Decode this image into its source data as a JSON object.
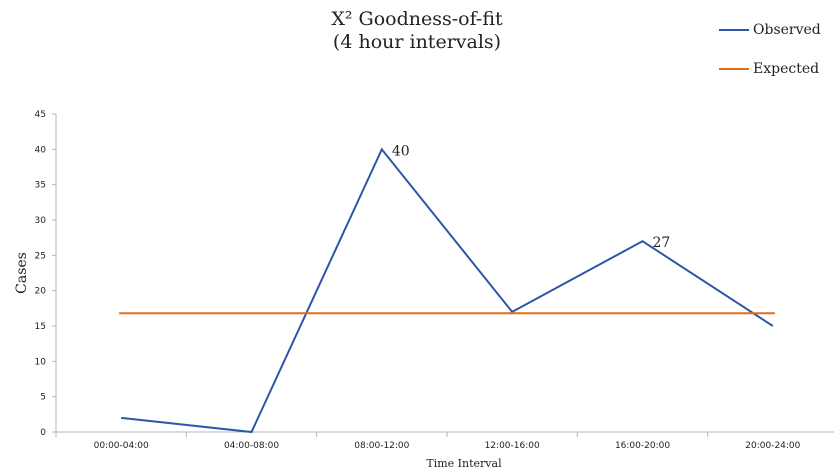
{
  "chart_data": {
    "type": "line",
    "title_line1": "X² Goodness-of-fit",
    "title_line2": "(4 hour intervals)",
    "xlabel": "Time Interval",
    "ylabel": "Cases",
    "categories": [
      "00:00-04:00",
      "04:00-08:00",
      "08:00-12:00",
      "12:00-16:00",
      "16:00-20:00",
      "20:00-24:00"
    ],
    "ylim": [
      0,
      45
    ],
    "yticks": [
      0,
      5,
      10,
      15,
      20,
      25,
      30,
      35,
      40,
      45
    ],
    "grid": false,
    "legend_position": "top-right",
    "series": [
      {
        "name": "Observed",
        "color": "#2e56a8",
        "values": [
          2,
          0,
          40,
          17,
          27,
          15
        ]
      },
      {
        "name": "Expected",
        "color": "#e36c1a",
        "values": [
          16.8,
          16.8,
          16.8,
          16.8,
          16.8,
          16.8
        ]
      }
    ],
    "data_labels": [
      {
        "series": 0,
        "index": 2,
        "text": "40"
      },
      {
        "series": 0,
        "index": 4,
        "text": "27"
      }
    ]
  }
}
